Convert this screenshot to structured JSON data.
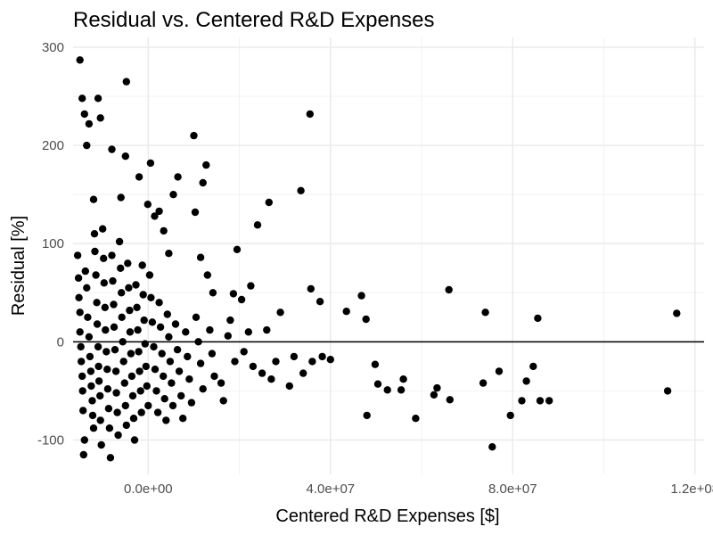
{
  "chart_data": {
    "type": "scatter",
    "title": "Residual vs. Centered R&D Expenses",
    "xlabel": "Centered R&D Expenses [$]",
    "ylabel": "Residual [%]",
    "xlim": [
      -16500000,
      122000000
    ],
    "ylim": [
      -135,
      310
    ],
    "x_ticks": [
      0,
      40000000,
      80000000,
      120000000
    ],
    "x_tick_labels": [
      "0.0e+00",
      "4.0e+07",
      "8.0e+07",
      "1.2e+08"
    ],
    "y_ticks": [
      -100,
      0,
      100,
      200,
      300
    ],
    "y_tick_labels": [
      "-100",
      "0",
      "100",
      "200",
      "300"
    ],
    "reference_line_y": 0,
    "grid": true,
    "point_color": "#000000",
    "points": [
      [
        -15000000,
        287
      ],
      [
        -14500000,
        248
      ],
      [
        -14000000,
        232
      ],
      [
        -13500000,
        200
      ],
      [
        -13000000,
        222
      ],
      [
        -12000000,
        145
      ],
      [
        -11000000,
        248
      ],
      [
        -10500000,
        228
      ],
      [
        -8000000,
        196
      ],
      [
        -6000000,
        147
      ],
      [
        -5000000,
        189
      ],
      [
        -4800000,
        265
      ],
      [
        -2000000,
        168
      ],
      [
        -100000,
        140
      ],
      [
        500000,
        182
      ],
      [
        1400000,
        128
      ],
      [
        2400000,
        133
      ],
      [
        3400000,
        113
      ],
      [
        4500000,
        90
      ],
      [
        5500000,
        150
      ],
      [
        6500000,
        168
      ],
      [
        10000000,
        210
      ],
      [
        10300000,
        132
      ],
      [
        11500000,
        86
      ],
      [
        12000000,
        162
      ],
      [
        12700000,
        180
      ],
      [
        13000000,
        68
      ],
      [
        14200000,
        50
      ],
      [
        17500000,
        6
      ],
      [
        18700000,
        49
      ],
      [
        19500000,
        94
      ],
      [
        20500000,
        43
      ],
      [
        22500000,
        57
      ],
      [
        24000000,
        119
      ],
      [
        26500000,
        142
      ],
      [
        29000000,
        30
      ],
      [
        33500000,
        154
      ],
      [
        35500000,
        232
      ],
      [
        35700000,
        54
      ],
      [
        37700000,
        41
      ],
      [
        38200000,
        -15
      ],
      [
        43500000,
        31
      ],
      [
        46800000,
        47
      ],
      [
        47800000,
        23
      ],
      [
        48000000,
        -75
      ],
      [
        49800000,
        -23
      ],
      [
        50400000,
        -43
      ],
      [
        52500000,
        -49
      ],
      [
        55500000,
        -49
      ],
      [
        56000000,
        -38
      ],
      [
        58700000,
        -78
      ],
      [
        62700000,
        -54
      ],
      [
        63400000,
        -47
      ],
      [
        66000000,
        53
      ],
      [
        66200000,
        -59
      ],
      [
        73500000,
        -42
      ],
      [
        74000000,
        30
      ],
      [
        75500000,
        -107
      ],
      [
        77000000,
        -30
      ],
      [
        79500000,
        -75
      ],
      [
        82000000,
        -60
      ],
      [
        83000000,
        -40
      ],
      [
        84500000,
        -25
      ],
      [
        85500000,
        24
      ],
      [
        86000000,
        -60
      ],
      [
        88000000,
        -60
      ],
      [
        114000000,
        -50
      ],
      [
        116000000,
        29
      ],
      [
        -15500000,
        88
      ],
      [
        -15300000,
        65
      ],
      [
        -15200000,
        45
      ],
      [
        -15000000,
        30
      ],
      [
        -15000000,
        10
      ],
      [
        -14800000,
        -5
      ],
      [
        -14700000,
        -20
      ],
      [
        -14500000,
        -35
      ],
      [
        -14400000,
        -50
      ],
      [
        -14300000,
        -70
      ],
      [
        -14200000,
        -115
      ],
      [
        -14000000,
        -100
      ],
      [
        -13800000,
        72
      ],
      [
        -13500000,
        55
      ],
      [
        -13300000,
        25
      ],
      [
        -13000000,
        5
      ],
      [
        -12800000,
        -15
      ],
      [
        -12600000,
        -30
      ],
      [
        -12500000,
        -45
      ],
      [
        -12300000,
        -60
      ],
      [
        -12200000,
        -75
      ],
      [
        -12000000,
        -88
      ],
      [
        -11800000,
        110
      ],
      [
        -11700000,
        92
      ],
      [
        -11500000,
        68
      ],
      [
        -11300000,
        40
      ],
      [
        -11200000,
        18
      ],
      [
        -11000000,
        -5
      ],
      [
        -10900000,
        -25
      ],
      [
        -10800000,
        -40
      ],
      [
        -10600000,
        -55
      ],
      [
        -10500000,
        -80
      ],
      [
        -10300000,
        -105
      ],
      [
        -10000000,
        115
      ],
      [
        -9800000,
        85
      ],
      [
        -9700000,
        60
      ],
      [
        -9500000,
        35
      ],
      [
        -9400000,
        12
      ],
      [
        -9200000,
        -10
      ],
      [
        -9000000,
        -28
      ],
      [
        -8900000,
        -48
      ],
      [
        -8700000,
        -68
      ],
      [
        -8500000,
        -88
      ],
      [
        -8300000,
        -118
      ],
      [
        -8000000,
        88
      ],
      [
        -7800000,
        62
      ],
      [
        -7600000,
        38
      ],
      [
        -7500000,
        15
      ],
      [
        -7300000,
        -8
      ],
      [
        -7100000,
        -30
      ],
      [
        -7000000,
        -52
      ],
      [
        -6800000,
        -72
      ],
      [
        -6600000,
        -95
      ],
      [
        -6300000,
        102
      ],
      [
        -6100000,
        75
      ],
      [
        -5900000,
        50
      ],
      [
        -5800000,
        25
      ],
      [
        -5600000,
        0
      ],
      [
        -5400000,
        -20
      ],
      [
        -5200000,
        -42
      ],
      [
        -5000000,
        -65
      ],
      [
        -4800000,
        -85
      ],
      [
        -4500000,
        80
      ],
      [
        -4300000,
        55
      ],
      [
        -4100000,
        32
      ],
      [
        -4000000,
        10
      ],
      [
        -3800000,
        -12
      ],
      [
        -3600000,
        -35
      ],
      [
        -3400000,
        -55
      ],
      [
        -3200000,
        -78
      ],
      [
        -3000000,
        -100
      ],
      [
        -2700000,
        58
      ],
      [
        -2500000,
        35
      ],
      [
        -2300000,
        12
      ],
      [
        -2100000,
        -10
      ],
      [
        -1900000,
        -30
      ],
      [
        -1700000,
        -50
      ],
      [
        -1500000,
        -72
      ],
      [
        -1300000,
        78
      ],
      [
        -1100000,
        48
      ],
      [
        -900000,
        22
      ],
      [
        -700000,
        -2
      ],
      [
        -500000,
        -25
      ],
      [
        -300000,
        -45
      ],
      [
        0,
        -65
      ],
      [
        300000,
        68
      ],
      [
        600000,
        45
      ],
      [
        900000,
        20
      ],
      [
        1200000,
        -5
      ],
      [
        1500000,
        -28
      ],
      [
        1800000,
        -50
      ],
      [
        2100000,
        -72
      ],
      [
        2400000,
        40
      ],
      [
        2700000,
        15
      ],
      [
        3000000,
        -12
      ],
      [
        3300000,
        -35
      ],
      [
        3600000,
        -58
      ],
      [
        3900000,
        -80
      ],
      [
        4200000,
        28
      ],
      [
        4500000,
        5
      ],
      [
        4800000,
        -20
      ],
      [
        5100000,
        -42
      ],
      [
        5400000,
        -65
      ],
      [
        6000000,
        18
      ],
      [
        6400000,
        -8
      ],
      [
        6800000,
        -30
      ],
      [
        7200000,
        -55
      ],
      [
        7600000,
        -78
      ],
      [
        8200000,
        10
      ],
      [
        8600000,
        -15
      ],
      [
        9000000,
        -38
      ],
      [
        9500000,
        -62
      ],
      [
        10500000,
        25
      ],
      [
        11000000,
        0
      ],
      [
        11500000,
        -22
      ],
      [
        12000000,
        -48
      ],
      [
        13500000,
        12
      ],
      [
        14000000,
        -12
      ],
      [
        14500000,
        -35
      ],
      [
        16000000,
        -42
      ],
      [
        16500000,
        -60
      ],
      [
        18000000,
        22
      ],
      [
        19000000,
        -20
      ],
      [
        21000000,
        -10
      ],
      [
        22000000,
        10
      ],
      [
        23000000,
        -25
      ],
      [
        25000000,
        -32
      ],
      [
        26000000,
        12
      ],
      [
        27000000,
        -38
      ],
      [
        28000000,
        -20
      ],
      [
        31000000,
        -45
      ],
      [
        32000000,
        -15
      ],
      [
        34000000,
        -32
      ],
      [
        36000000,
        -20
      ],
      [
        40000000,
        -18
      ]
    ]
  }
}
